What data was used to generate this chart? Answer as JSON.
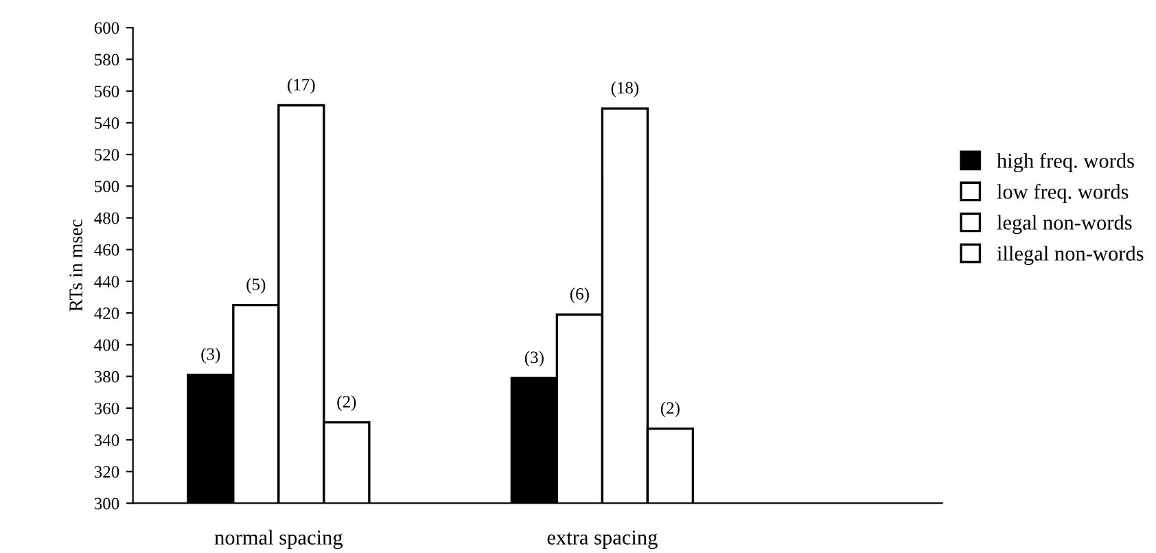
{
  "chart_data": {
    "type": "bar",
    "ylabel": "RTs in msec",
    "categories": [
      "normal spacing",
      "extra spacing"
    ],
    "series": [
      {
        "name": "high freq. words",
        "color": "#000000",
        "values": [
          381,
          379
        ]
      },
      {
        "name": "low freq. words",
        "color": "#ffffff",
        "values": [
          425,
          419
        ]
      },
      {
        "name": "legal non-words",
        "color": "#ffffff",
        "values": [
          551,
          549
        ]
      },
      {
        "name": "illegal non-words",
        "color": "#ffffff",
        "values": [
          351,
          347
        ]
      }
    ],
    "annotations": [
      "(3)",
      "(5)",
      "(17)",
      "(2)",
      "(3)",
      "(6)",
      "(18)",
      "(2)"
    ],
    "ylim": [
      300,
      600
    ],
    "yticks": [
      300,
      320,
      340,
      360,
      380,
      400,
      420,
      440,
      460,
      480,
      500,
      520,
      540,
      560,
      580,
      600
    ],
    "grid": false,
    "legend": "right"
  }
}
